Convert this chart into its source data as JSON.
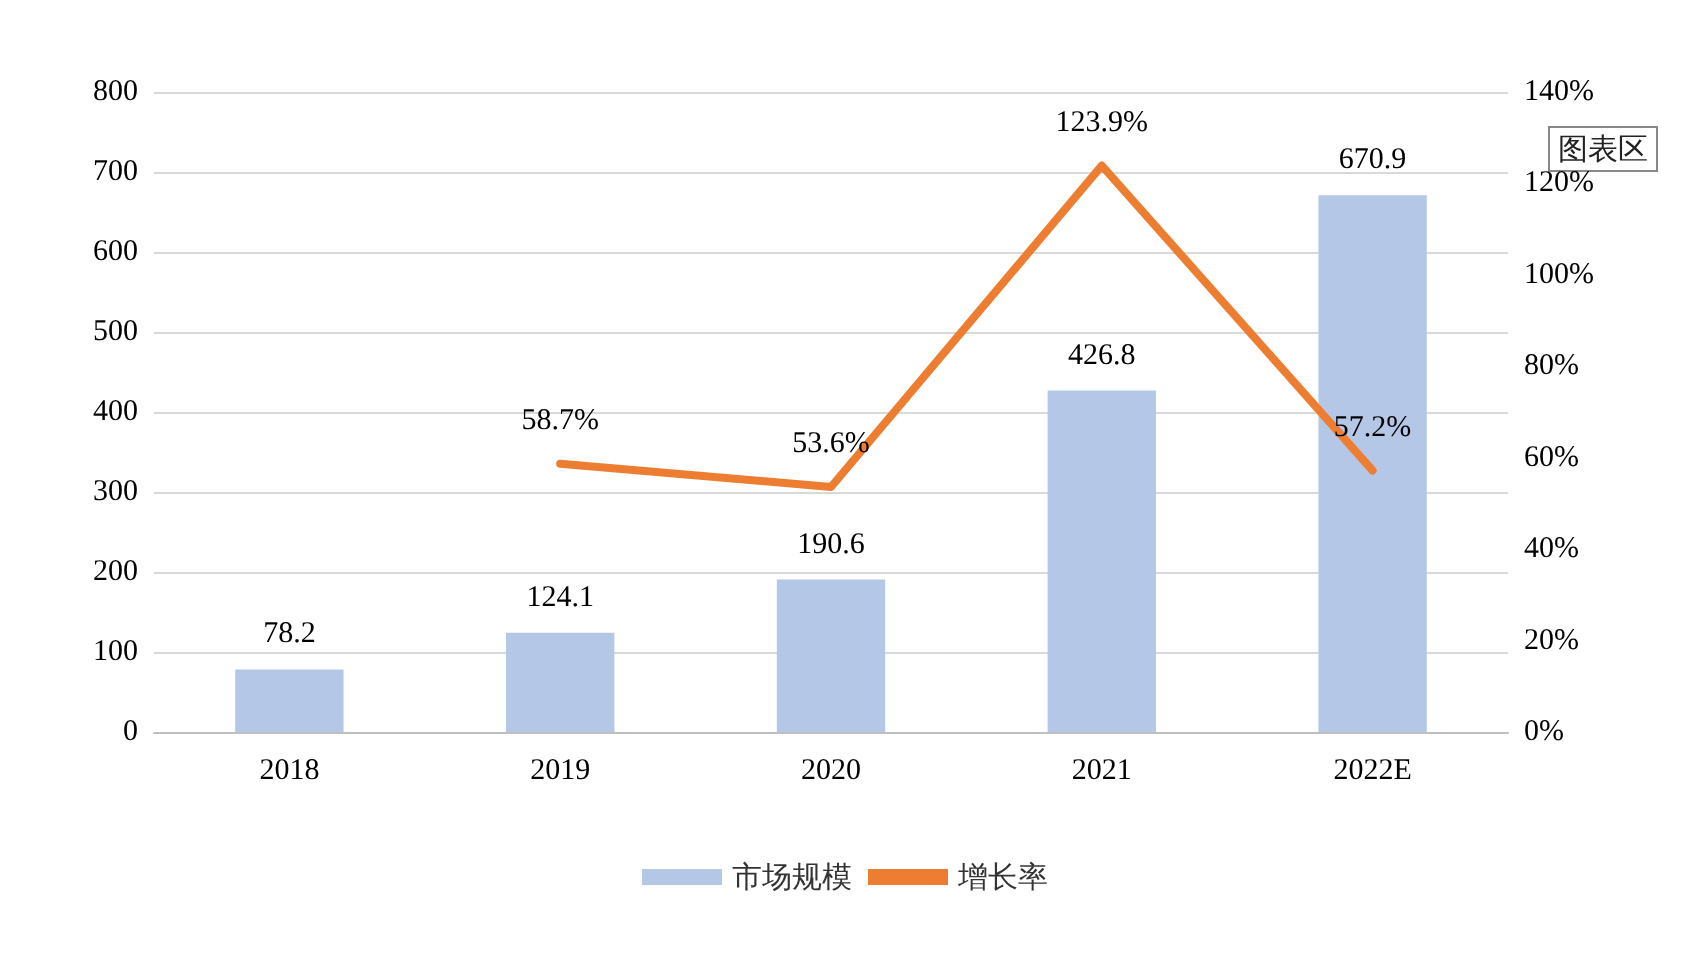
{
  "chart_data": {
    "type": "bar",
    "categories": [
      "2018",
      "2019",
      "2020",
      "2021",
      "2022E"
    ],
    "series": [
      {
        "name": "市场规模",
        "color": "#b4c7e7",
        "values": [
          78.2,
          124.1,
          190.6,
          426.8,
          670.9
        ]
      },
      {
        "name": "增长率",
        "type": "line",
        "axis": "y2",
        "color": "#ed7d31",
        "values": [
          null,
          58.7,
          53.6,
          123.9,
          57.2
        ],
        "value_labels": [
          null,
          "58.7%",
          "53.6%",
          "123.9%",
          "57.2%"
        ]
      }
    ],
    "ylim": [
      0,
      800
    ],
    "yticks": [
      0,
      100,
      200,
      300,
      400,
      500,
      600,
      700,
      800
    ],
    "y2lim": [
      0,
      140
    ],
    "y2ticks": [
      {
        "value": 0,
        "label": "0%"
      },
      {
        "value": 20,
        "label": "20%"
      },
      {
        "value": 40,
        "label": "40%"
      },
      {
        "value": 60,
        "label": "60%"
      },
      {
        "value": 80,
        "label": "80%"
      },
      {
        "value": 100,
        "label": "100%"
      },
      {
        "value": 120,
        "label": "120%"
      },
      {
        "value": 140,
        "label": "140%"
      }
    ],
    "data_labels": true,
    "grid": "y",
    "legend": "bottom",
    "marker": "none",
    "line_style": "solid",
    "annotations": [
      "图表区"
    ]
  }
}
